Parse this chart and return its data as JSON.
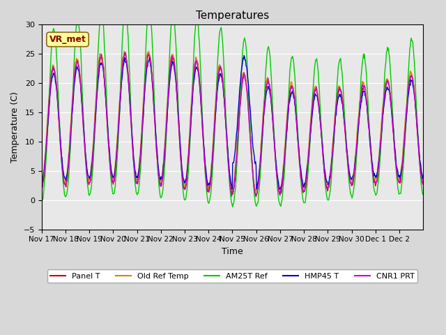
{
  "title": "Temperatures",
  "xlabel": "Time",
  "ylabel": "Temperature (C)",
  "ylim": [
    -5,
    30
  ],
  "yticks": [
    -5,
    0,
    5,
    10,
    15,
    20,
    25,
    30
  ],
  "plot_bg_color": "#e8e8e8",
  "fig_bg_color": "#d8d8d8",
  "station_label": "VR_met",
  "station_label_color": "#8B0000",
  "station_box_facecolor": "#ffff99",
  "station_box_edgecolor": "#8B6914",
  "series_colors": {
    "Panel T": "#cc0000",
    "Old Ref Temp": "#cc8800",
    "AM25T Ref": "#00cc00",
    "HMP45 T": "#0000cc",
    "CNR1 PRT": "#cc00cc"
  },
  "num_days": 16,
  "days_labels": [
    "Nov 17",
    "Nov 18",
    "Nov 19",
    "Nov 20",
    "Nov 21",
    "Nov 22",
    "Nov 23",
    "Nov 24",
    "Nov 25",
    "Nov 26",
    "Nov 27",
    "Nov 28",
    "Nov 29",
    "Nov 30",
    "Dec 1",
    "Dec 2"
  ],
  "points_per_day": 48
}
